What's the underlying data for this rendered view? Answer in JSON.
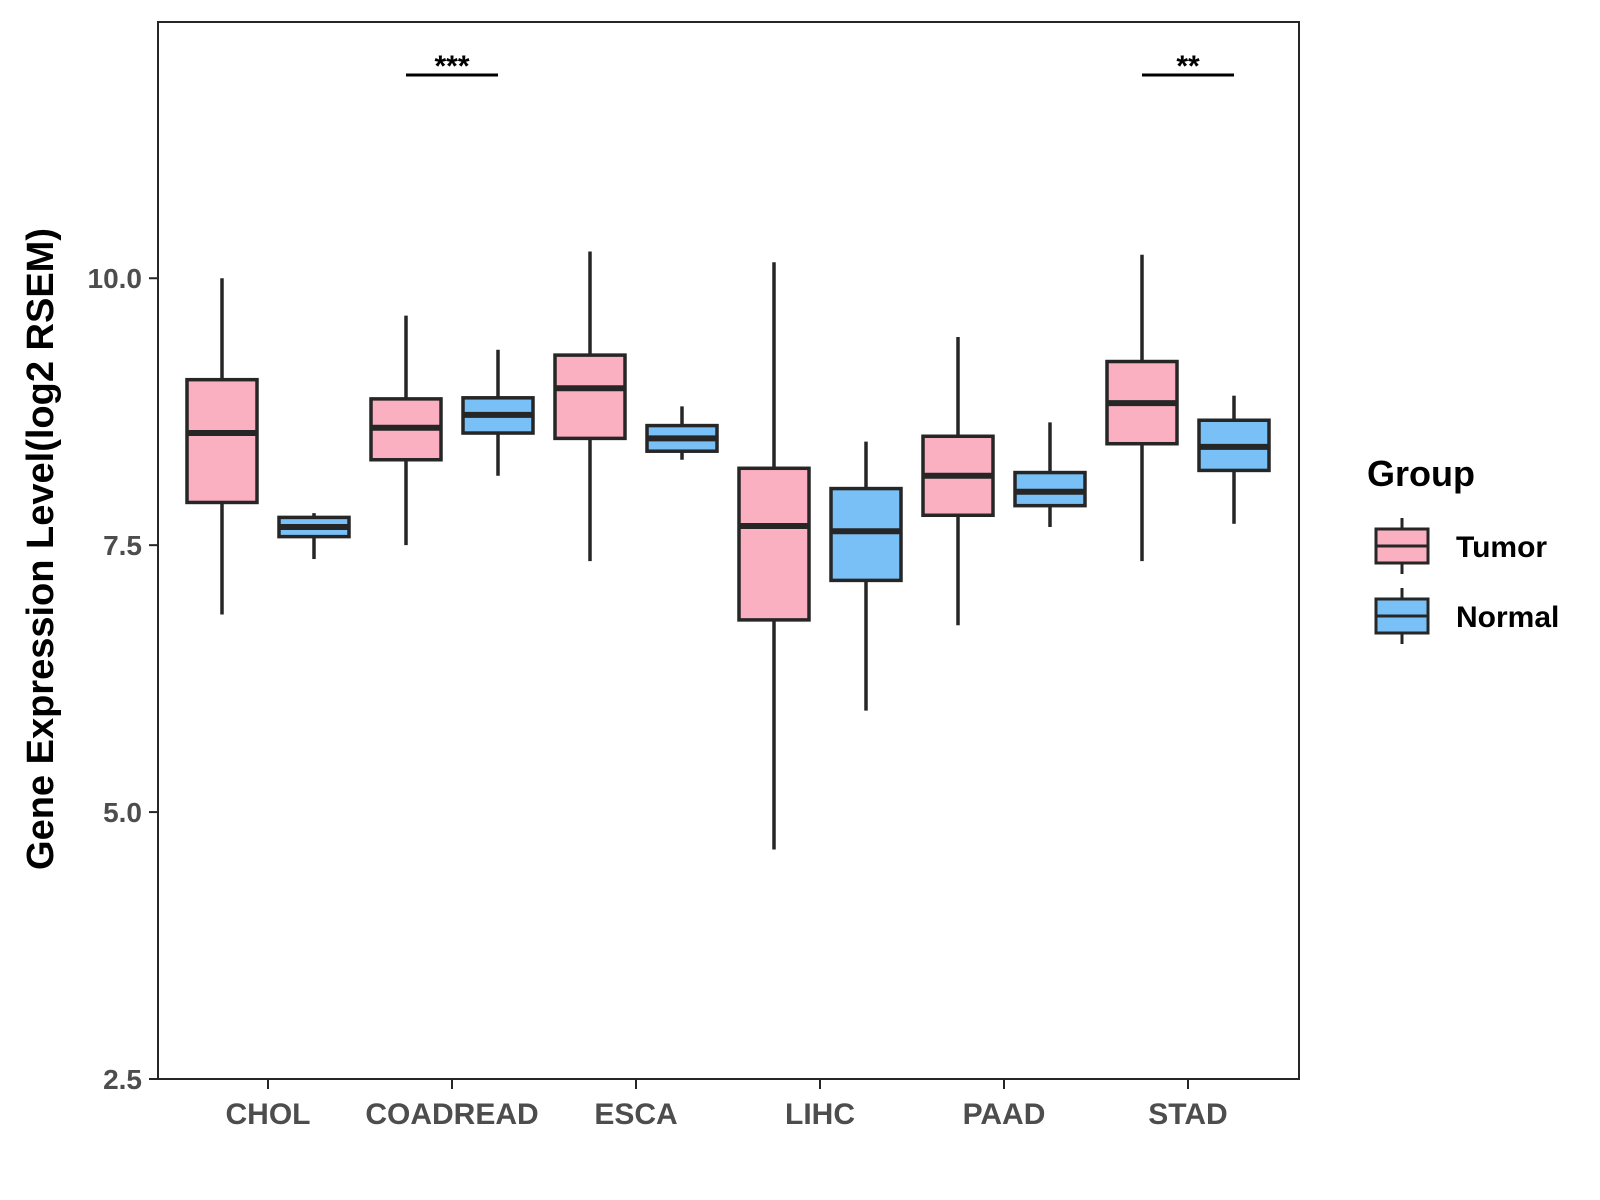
{
  "chart_data": {
    "type": "boxplot",
    "title": "",
    "xlabel": "",
    "ylabel": "Gene Expression Level(log2 RSEM)",
    "ylim": [
      2.5,
      12.4
    ],
    "yticks": [
      "2.5",
      "5.0",
      "7.5",
      "10.0"
    ],
    "categories": [
      "CHOL",
      "COADREAD",
      "ESCA",
      "LIHC",
      "PAAD",
      "STAD"
    ],
    "legend": {
      "title": "Group",
      "position": "right"
    },
    "colors": {
      "Tumor": "#fbb0c1",
      "Normal": "#79c0f7",
      "stroke": "#262626"
    },
    "series": [
      {
        "name": "Tumor",
        "boxes": [
          {
            "min": 6.85,
            "q1": 7.9,
            "median": 8.55,
            "q3": 9.05,
            "max": 10.0
          },
          {
            "min": 7.5,
            "q1": 8.3,
            "median": 8.6,
            "q3": 8.87,
            "max": 9.65
          },
          {
            "min": 7.35,
            "q1": 8.5,
            "median": 8.97,
            "q3": 9.28,
            "max": 10.25
          },
          {
            "min": 4.65,
            "q1": 6.8,
            "median": 7.68,
            "q3": 8.22,
            "max": 10.15
          },
          {
            "min": 6.75,
            "q1": 7.78,
            "median": 8.15,
            "q3": 8.52,
            "max": 9.45
          },
          {
            "min": 7.35,
            "q1": 8.45,
            "median": 8.83,
            "q3": 9.22,
            "max": 10.22
          }
        ]
      },
      {
        "name": "Normal",
        "boxes": [
          {
            "min": 7.37,
            "q1": 7.58,
            "median": 7.67,
            "q3": 7.76,
            "max": 7.8
          },
          {
            "min": 8.15,
            "q1": 8.55,
            "median": 8.72,
            "q3": 8.88,
            "max": 9.33
          },
          {
            "min": 8.3,
            "q1": 8.38,
            "median": 8.5,
            "q3": 8.62,
            "max": 8.8
          },
          {
            "min": 5.95,
            "q1": 7.17,
            "median": 7.63,
            "q3": 8.03,
            "max": 8.47
          },
          {
            "min": 7.67,
            "q1": 7.87,
            "median": 8.0,
            "q3": 8.18,
            "max": 8.65
          },
          {
            "min": 7.7,
            "q1": 8.2,
            "median": 8.42,
            "q3": 8.67,
            "max": 8.9
          }
        ]
      }
    ],
    "significance": [
      {
        "category": "COADREAD",
        "label": "***"
      },
      {
        "category": "STAD",
        "label": "**"
      }
    ]
  }
}
